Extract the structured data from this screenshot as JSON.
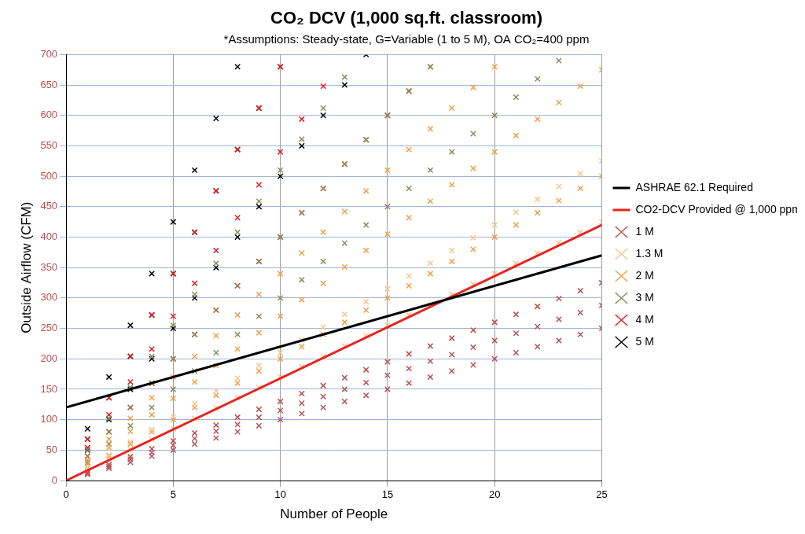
{
  "chart_data": {
    "type": "scatter",
    "title": "CO₂ DCV (1,000 sq.ft. classroom)",
    "subtitle": "*Assumptions: Steady-state, G=Variable (1 to 5 M), OA CO₂=400 ppm",
    "x_label": "Number of People",
    "y_label": "Outside Airflow (CFM)",
    "xlim": [
      0,
      25
    ],
    "xticks": [
      0,
      5,
      10,
      15,
      20,
      25
    ],
    "ylim": [
      0,
      700
    ],
    "yticks": [
      0,
      50,
      100,
      150,
      200,
      250,
      300,
      350,
      400,
      450,
      500,
      550,
      600,
      650,
      700
    ],
    "grid": true,
    "legend": "right",
    "series": [
      {
        "name": "1 M",
        "color": "#b5555a",
        "marker": "x",
        "x": [
          1,
          1,
          1,
          2,
          2,
          2,
          3,
          3,
          3,
          4,
          4,
          4,
          5,
          5,
          5,
          6,
          6,
          6,
          7,
          7,
          7,
          8,
          8,
          8,
          9,
          9,
          9,
          10,
          10,
          10,
          11,
          11,
          11,
          12,
          12,
          12,
          13,
          13,
          13,
          14,
          14,
          14,
          15,
          15,
          15,
          16,
          16,
          16,
          17,
          17,
          17,
          18,
          18,
          18,
          19,
          19,
          19,
          20,
          20,
          20,
          21,
          21,
          21,
          22,
          22,
          22,
          23,
          23,
          23,
          24,
          24,
          24,
          25,
          25,
          25
        ],
        "values": [
          10,
          12,
          13,
          20,
          23,
          26,
          30,
          35,
          39,
          40,
          46,
          52,
          50,
          58,
          65,
          60,
          69,
          78,
          70,
          81,
          91,
          80,
          92,
          104,
          90,
          104,
          117,
          100,
          115,
          130,
          110,
          127,
          143,
          120,
          138,
          156,
          130,
          150,
          169,
          140,
          161,
          182,
          150,
          173,
          195,
          160,
          184,
          208,
          170,
          196,
          221,
          180,
          207,
          234,
          190,
          219,
          247,
          200,
          230,
          260,
          210,
          242,
          273,
          220,
          253,
          286,
          230,
          265,
          299,
          240,
          276,
          312,
          250,
          288,
          325
        ]
      },
      {
        "name": "1.3 M",
        "color": "#f6c690",
        "marker": "x",
        "x": [
          1,
          1,
          1,
          2,
          2,
          2,
          3,
          3,
          3,
          4,
          4,
          4,
          5,
          5,
          5,
          6,
          6,
          6,
          7,
          7,
          7,
          8,
          8,
          8,
          9,
          9,
          9,
          10,
          10,
          10,
          11,
          11,
          11,
          12,
          12,
          12,
          13,
          13,
          13,
          14,
          14,
          14,
          15,
          15,
          15,
          16,
          16,
          16,
          17,
          17,
          17,
          18,
          18,
          18,
          19,
          19,
          19,
          20,
          20,
          20,
          21,
          21,
          21,
          22,
          22,
          22,
          23,
          23,
          23,
          24,
          24,
          24,
          25,
          25,
          25
        ],
        "values": [
          13,
          17,
          21,
          26,
          34,
          42,
          39,
          51,
          63,
          52,
          68,
          84,
          65,
          85,
          105,
          78,
          102,
          126,
          91,
          119,
          147,
          104,
          136,
          168,
          117,
          153,
          189,
          130,
          170,
          210,
          143,
          187,
          231,
          156,
          204,
          252,
          169,
          221,
          273,
          182,
          238,
          294,
          195,
          255,
          315,
          208,
          272,
          336,
          221,
          289,
          357,
          234,
          306,
          378,
          247,
          323,
          399,
          260,
          340,
          420,
          273,
          357,
          441,
          286,
          374,
          462,
          299,
          391,
          483,
          312,
          408,
          504,
          325,
          425,
          525
        ]
      },
      {
        "name": "2 M",
        "color": "#f0a04b",
        "marker": "x",
        "x": [
          1,
          1,
          1,
          2,
          2,
          2,
          3,
          3,
          3,
          4,
          4,
          4,
          5,
          5,
          5,
          6,
          6,
          6,
          7,
          7,
          7,
          8,
          8,
          8,
          9,
          9,
          9,
          10,
          10,
          10,
          11,
          11,
          11,
          12,
          12,
          12,
          13,
          13,
          13,
          14,
          14,
          14,
          15,
          15,
          15,
          16,
          16,
          16,
          17,
          17,
          17,
          18,
          18,
          18,
          19,
          19,
          19,
          20,
          20,
          20,
          21,
          21,
          22,
          22,
          23,
          23,
          24,
          24,
          25,
          25
        ],
        "values": [
          20,
          27,
          34,
          40,
          54,
          68,
          60,
          81,
          102,
          80,
          108,
          136,
          100,
          135,
          170,
          120,
          162,
          204,
          140,
          189,
          238,
          160,
          216,
          272,
          180,
          243,
          306,
          200,
          270,
          340,
          220,
          297,
          374,
          240,
          324,
          408,
          260,
          351,
          442,
          280,
          378,
          476,
          300,
          405,
          510,
          320,
          432,
          544,
          340,
          459,
          578,
          360,
          486,
          612,
          380,
          513,
          646,
          400,
          540,
          680,
          420,
          567,
          440,
          594,
          460,
          621,
          480,
          648,
          500,
          675
        ]
      },
      {
        "name": "3 M",
        "color": "#8c8c5c",
        "marker": "x",
        "x": [
          1,
          1,
          1,
          2,
          2,
          2,
          3,
          3,
          3,
          4,
          4,
          4,
          5,
          5,
          5,
          6,
          6,
          6,
          7,
          7,
          7,
          8,
          8,
          8,
          9,
          9,
          9,
          10,
          10,
          10,
          11,
          11,
          11,
          12,
          12,
          12,
          13,
          13,
          13,
          14,
          14,
          15,
          15,
          16,
          16,
          17,
          17,
          18,
          19,
          20,
          21,
          22,
          23
        ],
        "values": [
          30,
          40,
          51,
          60,
          80,
          102,
          90,
          120,
          153,
          120,
          160,
          204,
          150,
          200,
          255,
          180,
          240,
          306,
          210,
          280,
          357,
          240,
          320,
          408,
          270,
          360,
          459,
          300,
          400,
          510,
          330,
          440,
          561,
          360,
          480,
          612,
          390,
          520,
          663,
          420,
          560,
          450,
          600,
          480,
          640,
          510,
          680,
          540,
          570,
          600,
          630,
          660,
          690
        ]
      },
      {
        "name": "4 M",
        "color": "#e02020",
        "marker": "x",
        "x": [
          1,
          1,
          1,
          2,
          2,
          2,
          3,
          3,
          3,
          4,
          4,
          4,
          5,
          5,
          5,
          6,
          6,
          6,
          7,
          7,
          7,
          8,
          8,
          8,
          9,
          9,
          9,
          10,
          10,
          10,
          11,
          11,
          12,
          12,
          13,
          14,
          15,
          16,
          17
        ],
        "values": [
          40,
          54,
          68,
          80,
          108,
          136,
          120,
          162,
          204,
          160,
          216,
          272,
          200,
          270,
          340,
          240,
          324,
          408,
          280,
          378,
          476,
          320,
          432,
          544,
          360,
          486,
          612,
          400,
          540,
          680,
          440,
          594,
          480,
          648,
          520,
          560,
          600,
          640,
          680
        ]
      },
      {
        "name": "5 M",
        "color": "#000000",
        "marker": "x",
        "x": [
          1,
          1,
          1,
          2,
          2,
          2,
          3,
          3,
          3,
          4,
          4,
          4,
          5,
          5,
          5,
          6,
          6,
          6,
          7,
          7,
          7,
          8,
          8,
          8,
          9,
          9,
          10,
          10,
          11,
          12,
          13,
          14
        ],
        "values": [
          50,
          68,
          85,
          100,
          136,
          170,
          150,
          204,
          255,
          200,
          272,
          340,
          250,
          340,
          425,
          300,
          408,
          510,
          350,
          476,
          595,
          400,
          544,
          680,
          450,
          612,
          500,
          680,
          550,
          600,
          650,
          700
        ]
      },
      {
        "name": "ASHRAE 62.1 Required",
        "color": "#000000",
        "type": "line",
        "line_style": "solid",
        "x": [
          0,
          25
        ],
        "values": [
          120,
          370
        ]
      },
      {
        "name": "CO2-DCV Provided @ 1,000 ppm",
        "color": "#e8231f",
        "type": "line",
        "line_style": "solid",
        "x": [
          0,
          25
        ],
        "values": [
          0,
          420
        ]
      }
    ]
  }
}
